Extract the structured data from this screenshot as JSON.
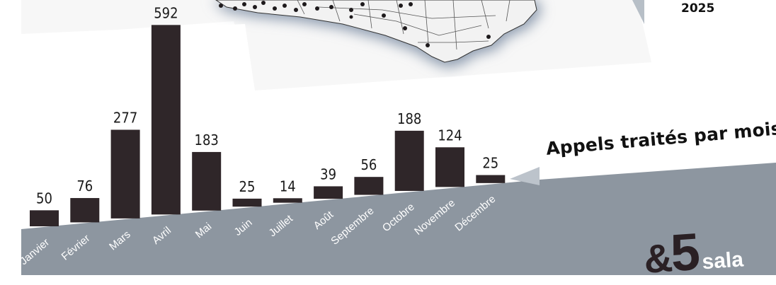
{
  "year_label": "2025",
  "chart_caption": "Appels traités par mois",
  "footer_fragment": {
    "ampersand": "&",
    "number": "5",
    "word": "sala"
  },
  "colors": {
    "bar": "#2f2629",
    "band": "#8d96a0",
    "map_shadow": "#9aa6b4",
    "map_fill": "#f2f2f2"
  },
  "chart_data": {
    "type": "bar",
    "title": "Appels traités par mois",
    "categories": [
      "Janvier",
      "Février",
      "Mars",
      "Avril",
      "Mai",
      "Juin",
      "Juillet",
      "Août",
      "Septembre",
      "Octobre",
      "Novembre",
      "Décembre"
    ],
    "values": [
      50,
      76,
      277,
      592,
      183,
      25,
      14,
      39,
      56,
      188,
      124,
      25
    ],
    "xlabel": "",
    "ylabel": "",
    "grid": false,
    "legend": "none"
  }
}
